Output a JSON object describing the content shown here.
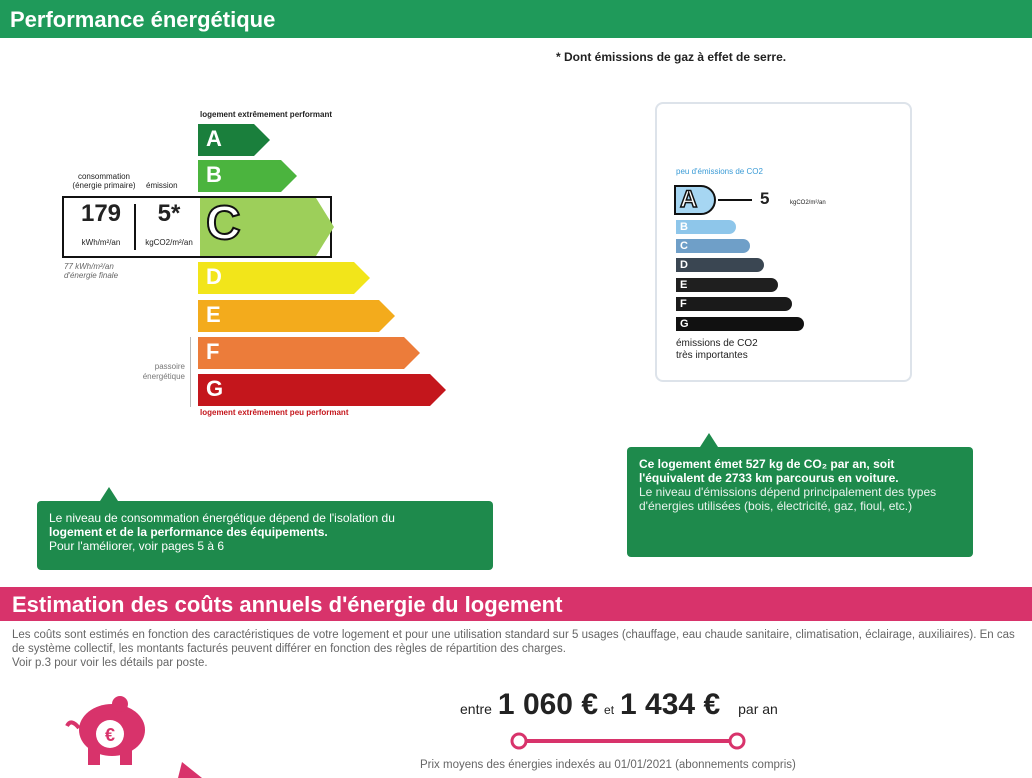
{
  "header": {
    "title": "Performance énergétique"
  },
  "note": "* Dont émissions de gaz à effet de serre.",
  "energy_label": {
    "top_text": "logement extrêmement performant",
    "bottom_text": "logement extrêmement peu performant",
    "consumption_label": "consommation (énergie primaire)",
    "emission_label": "émission",
    "consumption_value": "179",
    "consumption_unit": "kWh/m²/an",
    "emission_value": "5*",
    "emission_unit": "kgCO2/m²/an",
    "final_energy": "77 kWh/m²/an d'énergie finale",
    "power_label": "passoire énergétique",
    "current_class": "C",
    "classes": [
      {
        "letter": "A",
        "color": "#1a7f3c"
      },
      {
        "letter": "B",
        "color": "#4bb43e"
      },
      {
        "letter": "C",
        "color": "#9dcf5a"
      },
      {
        "letter": "D",
        "color": "#f2e51a"
      },
      {
        "letter": "E",
        "color": "#f3ab1c"
      },
      {
        "letter": "F",
        "color": "#ec7c3a"
      },
      {
        "letter": "G",
        "color": "#c4161c"
      }
    ]
  },
  "co2_label": {
    "top_text": "peu d'émissions de CO2",
    "current_class": "A",
    "value": "5",
    "unit": "kgCO2/m²/an",
    "bottom_text": "émissions de CO2 très importantes",
    "classes": [
      {
        "letter": "A",
        "color": "#a6d6f2"
      },
      {
        "letter": "B",
        "color": "#8ec6ea"
      },
      {
        "letter": "C",
        "color": "#6f9fc8"
      },
      {
        "letter": "D",
        "color": "#3a4652"
      },
      {
        "letter": "E",
        "color": "#1f1f1f"
      },
      {
        "letter": "F",
        "color": "#1a1a1a"
      },
      {
        "letter": "G",
        "color": "#111111"
      }
    ]
  },
  "callout_energy": {
    "line1": "Le niveau de consommation énergétique dépend de l'isolation du",
    "line2": "logement et de la performance des équipements.",
    "line3": "Pour l'améliorer, voir pages 5 à 6"
  },
  "callout_co2": {
    "bold": "Ce logement émet 527  kg de CO₂ par an, soit l'équivalent de 2733 km parcourus en voiture.",
    "text": "Le niveau d'émissions dépend principalement des types d'énergies utilisées (bois, électricité, gaz, fioul, etc.)"
  },
  "costs": {
    "title": "Estimation des coûts annuels d'énergie du logement",
    "para1": "Les coûts sont estimés en fonction des caractéristiques de votre logement et pour une utilisation standard sur 5 usages (chauffage, eau chaude sanitaire, climatisation, éclairage, auxiliaires). En cas de système collectif, les montants facturés peuvent différer en fonction des règles de répartition des charges.",
    "para2": "Voir p.3 pour voir les détails par poste.",
    "between": "entre",
    "min": "1 060 €",
    "and": "et",
    "max": "1 434 €",
    "per_year": "par an",
    "footer": "Prix moyens des énergies indexés au 01/01/2021 (abonnements compris)"
  },
  "colors": {
    "green": "#1f9a5a",
    "pink": "#d8336b"
  }
}
